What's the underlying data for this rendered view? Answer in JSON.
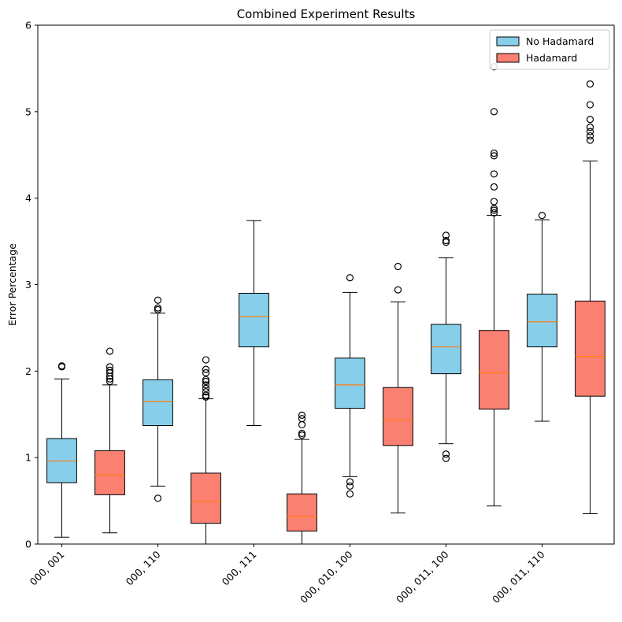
{
  "chart_data": {
    "type": "box",
    "title": "Combined Experiment Results",
    "xlabel": "",
    "ylabel": "Error Percentage",
    "ylim": [
      0,
      6
    ],
    "yticks": [
      "0",
      "1",
      "2",
      "3",
      "4",
      "5",
      "6"
    ],
    "categories": [
      "000, 001",
      "000, 110",
      "000, 111",
      "000, 010, 100",
      "000, 011, 100",
      "000, 011, 110"
    ],
    "grid": false,
    "legend_position": "top-right",
    "colors": {
      "No Hadamard": "#87ceeb",
      "Hadamard": "#fa8072",
      "median": "#ff7f0e",
      "edge": "#000000"
    },
    "series": [
      {
        "name": "No Hadamard",
        "boxes": [
          {
            "category": "000, 001",
            "whislo": 0.08,
            "q1": 0.71,
            "med": 0.96,
            "q3": 1.22,
            "whishi": 1.91,
            "fliers": [
              2.05,
              2.06
            ]
          },
          {
            "category": "000, 110",
            "whislo": 0.67,
            "q1": 1.37,
            "med": 1.65,
            "q3": 1.9,
            "whishi": 2.67,
            "fliers": [
              0.53,
              2.71,
              2.73,
              2.82
            ]
          },
          {
            "category": "000, 111",
            "whislo": 1.37,
            "q1": 2.28,
            "med": 2.63,
            "q3": 2.9,
            "whishi": 3.74,
            "fliers": []
          },
          {
            "category": "000, 010, 100",
            "whislo": 0.78,
            "q1": 1.57,
            "med": 1.84,
            "q3": 2.15,
            "whishi": 2.91,
            "fliers": [
              0.58,
              0.67,
              0.72,
              3.08
            ]
          },
          {
            "category": "000, 011, 100",
            "whislo": 1.16,
            "q1": 1.97,
            "med": 2.28,
            "q3": 2.54,
            "whishi": 3.31,
            "fliers": [
              0.99,
              1.04,
              3.49,
              3.51,
              3.57
            ]
          },
          {
            "category": "000, 011, 110",
            "whislo": 1.42,
            "q1": 2.28,
            "med": 2.57,
            "q3": 2.89,
            "whishi": 3.75,
            "fliers": [
              3.8
            ]
          }
        ]
      },
      {
        "name": "Hadamard",
        "boxes": [
          {
            "category": "000, 001",
            "whislo": 0.13,
            "q1": 0.57,
            "med": 0.8,
            "q3": 1.08,
            "whishi": 1.84,
            "fliers": [
              1.88,
              1.91,
              1.94,
              1.98,
              2.01,
              2.05,
              2.23
            ]
          },
          {
            "category": "000, 110",
            "whislo": 0.0,
            "q1": 0.24,
            "med": 0.49,
            "q3": 0.82,
            "whishi": 1.68,
            "fliers": [
              1.7,
              1.72,
              1.76,
              1.8,
              1.84,
              1.88,
              1.9,
              1.98,
              2.02,
              2.13
            ]
          },
          {
            "category": "000, 111",
            "whislo": 0.0,
            "q1": 0.15,
            "med": 0.32,
            "q3": 0.58,
            "whishi": 1.21,
            "fliers": [
              1.26,
              1.28,
              1.38,
              1.45,
              1.49
            ]
          },
          {
            "category": "000, 010, 100",
            "whislo": 0.36,
            "q1": 1.14,
            "med": 1.43,
            "q3": 1.81,
            "whishi": 2.8,
            "fliers": [
              2.94,
              3.21
            ]
          },
          {
            "category": "000, 011, 100",
            "whislo": 0.44,
            "q1": 1.56,
            "med": 1.98,
            "q3": 2.47,
            "whishi": 3.8,
            "fliers": [
              3.83,
              3.86,
              3.88,
              3.96,
              4.13,
              4.28,
              4.49,
              4.52,
              5.0,
              5.52
            ]
          },
          {
            "category": "000, 011, 110",
            "whislo": 0.35,
            "q1": 1.71,
            "med": 2.17,
            "q3": 2.81,
            "whishi": 4.43,
            "fliers": [
              4.67,
              4.72,
              4.77,
              4.82,
              4.91,
              5.08,
              5.32
            ]
          }
        ]
      }
    ]
  }
}
